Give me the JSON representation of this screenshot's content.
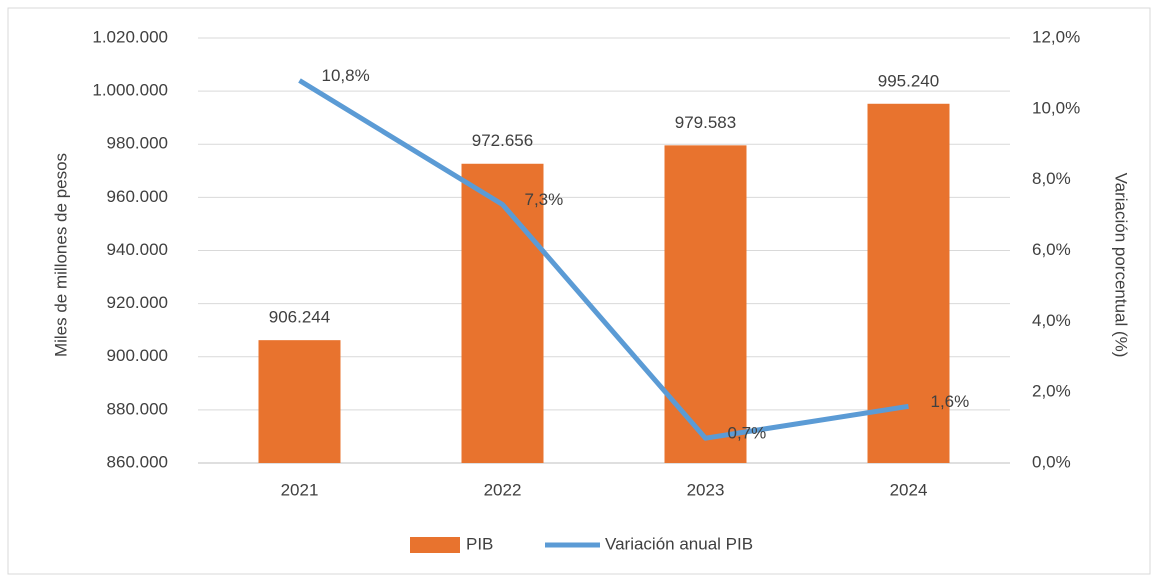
{
  "chart_data": {
    "type": "bar",
    "categories": [
      "2021",
      "2022",
      "2023",
      "2024"
    ],
    "series": [
      {
        "name": "PIB",
        "type": "bar",
        "color": "#e8732e",
        "values": [
          906244,
          972656,
          979583,
          995240
        ],
        "value_labels": [
          "906.244",
          "972.656",
          "979.583",
          "995.240"
        ]
      },
      {
        "name": "Variación anual PIB",
        "type": "line",
        "axis": "y2",
        "color": "#5b9bd5",
        "values": [
          10.8,
          7.3,
          0.7,
          1.6
        ],
        "value_labels": [
          "10,8%",
          "7,3%",
          "0,7%",
          "1,6%"
        ]
      }
    ],
    "ylabel": "Miles de millones de pesos",
    "y2label": "Variación porcentual (%)",
    "ylim": [
      860000,
      1020000
    ],
    "yticks": [
      {
        "value": 860000,
        "label": "860.000"
      },
      {
        "value": 880000,
        "label": "880.000"
      },
      {
        "value": 900000,
        "label": "900.000"
      },
      {
        "value": 920000,
        "label": "920.000"
      },
      {
        "value": 940000,
        "label": "940.000"
      },
      {
        "value": 960000,
        "label": "960.000"
      },
      {
        "value": 980000,
        "label": "980.000"
      },
      {
        "value": 1000000,
        "label": "1.000.000"
      },
      {
        "value": 1020000,
        "label": "1.020.000"
      }
    ],
    "y2lim": [
      0,
      12
    ],
    "y2ticks": [
      {
        "value": 0,
        "label": "0,0%"
      },
      {
        "value": 2,
        "label": "2,0%"
      },
      {
        "value": 4,
        "label": "4,0%"
      },
      {
        "value": 6,
        "label": "6,0%"
      },
      {
        "value": 8,
        "label": "8,0%"
      },
      {
        "value": 10,
        "label": "10,0%"
      },
      {
        "value": 12,
        "label": "12,0%"
      }
    ],
    "grid": true,
    "legend": "bottom"
  }
}
